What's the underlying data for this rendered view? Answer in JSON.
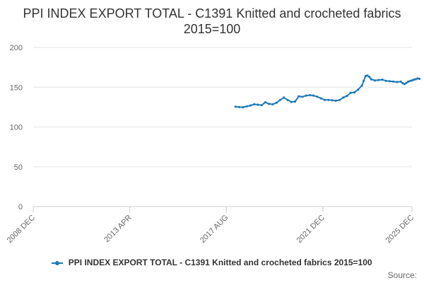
{
  "chart_data": {
    "type": "line",
    "title": "PPI INDEX EXPORT TOTAL - C1391 Knitted and crocheted fabrics 2015=100",
    "xlabel": "",
    "ylabel": "",
    "ylim": [
      0,
      200
    ],
    "yticks": [
      0,
      50,
      100,
      150,
      200
    ],
    "x_ticks": [
      "2008 DEC",
      "2013 APR",
      "2017 AUG",
      "2021 DEC",
      "2025 DEC"
    ],
    "x_range": [
      "2008-12",
      "2025-12"
    ],
    "grid": true,
    "legend_position": "bottom",
    "series": [
      {
        "name": "PPI INDEX EXPORT TOTAL - C1391 Knitted and crocheted fabrics 2015=100",
        "color": "#1f7ab8",
        "points": [
          [
            "2018-01",
            125.5
          ],
          [
            "2018-03",
            125.0
          ],
          [
            "2018-05",
            124.8
          ],
          [
            "2018-07",
            126.0
          ],
          [
            "2018-09",
            127.0
          ],
          [
            "2018-11",
            128.5
          ],
          [
            "2019-01",
            128.0
          ],
          [
            "2019-03",
            127.5
          ],
          [
            "2019-05",
            131.0
          ],
          [
            "2019-07",
            129.0
          ],
          [
            "2019-09",
            128.5
          ],
          [
            "2019-11",
            130.5
          ],
          [
            "2020-01",
            134.0
          ],
          [
            "2020-03",
            137.0
          ],
          [
            "2020-05",
            134.0
          ],
          [
            "2020-07",
            131.5
          ],
          [
            "2020-09",
            132.0
          ],
          [
            "2020-11",
            138.5
          ],
          [
            "2021-01",
            138.0
          ],
          [
            "2021-03",
            139.5
          ],
          [
            "2021-05",
            140.0
          ],
          [
            "2021-07",
            139.5
          ],
          [
            "2021-09",
            138.0
          ],
          [
            "2021-11",
            136.0
          ],
          [
            "2022-01",
            134.0
          ],
          [
            "2022-03",
            134.0
          ],
          [
            "2022-05",
            133.5
          ],
          [
            "2022-07",
            133.0
          ],
          [
            "2022-09",
            134.0
          ],
          [
            "2022-11",
            137.0
          ],
          [
            "2023-01",
            139.0
          ],
          [
            "2023-03",
            143.0
          ],
          [
            "2023-05",
            143.5
          ],
          [
            "2023-07",
            147.0
          ],
          [
            "2023-09",
            152.0
          ],
          [
            "2023-10",
            158.0
          ],
          [
            "2023-11",
            164.0
          ],
          [
            "2023-12",
            164.5
          ],
          [
            "2024-01",
            163.0
          ],
          [
            "2024-02",
            160.0
          ],
          [
            "2024-04",
            158.5
          ],
          [
            "2024-06",
            159.0
          ],
          [
            "2024-08",
            159.5
          ],
          [
            "2024-10",
            158.0
          ],
          [
            "2024-12",
            157.5
          ],
          [
            "2025-02",
            157.0
          ],
          [
            "2025-04",
            156.5
          ],
          [
            "2025-06",
            157.0
          ],
          [
            "2025-07",
            155.0
          ],
          [
            "2025-08",
            154.0
          ],
          [
            "2025-09",
            155.5
          ],
          [
            "2025-10",
            157.0
          ],
          [
            "2025-11",
            158.0
          ],
          [
            "2025-12",
            158.5
          ],
          [
            "2026-01",
            159.5
          ],
          [
            "2026-02",
            160.0
          ],
          [
            "2026-03",
            161.0
          ],
          [
            "2026-04",
            160.5
          ]
        ]
      }
    ]
  },
  "legend": {
    "label": "PPI INDEX EXPORT TOTAL - C1391 Knitted and crocheted fabrics 2015=100"
  },
  "source": {
    "label": "Source:"
  }
}
